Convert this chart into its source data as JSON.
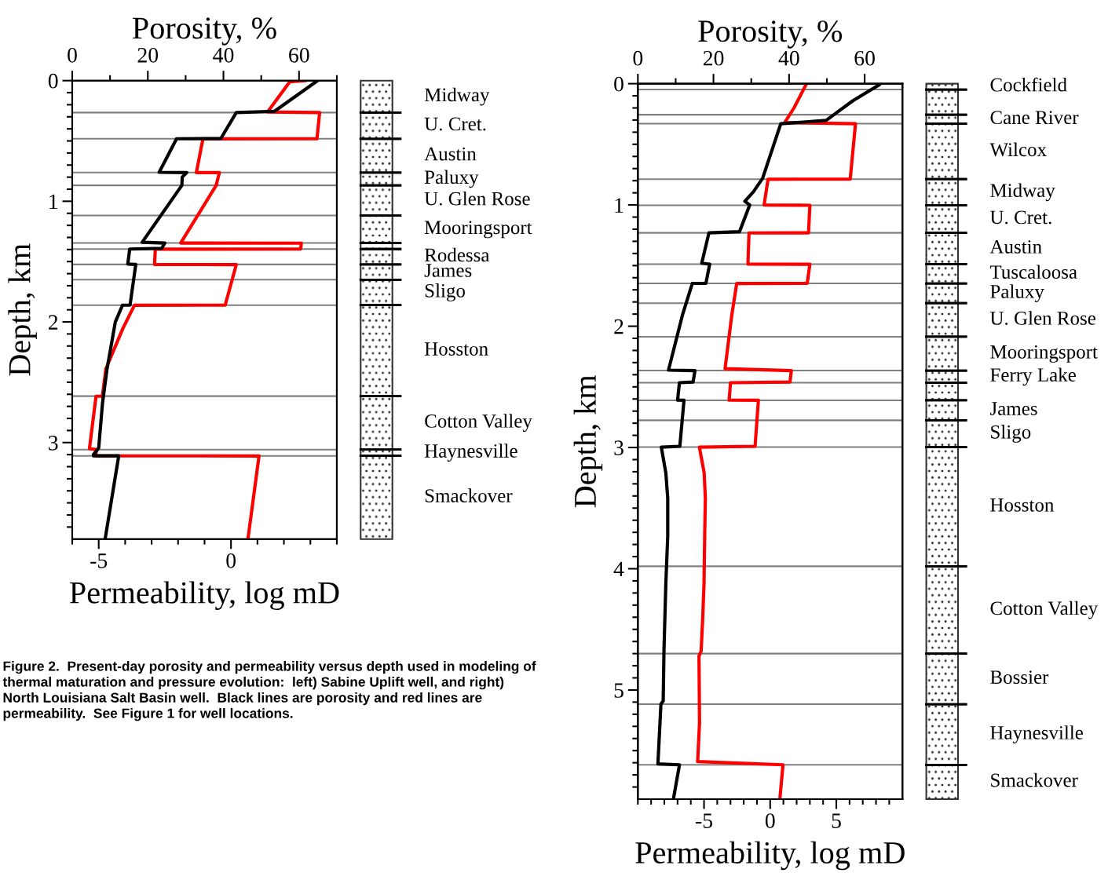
{
  "chart_data": [
    {
      "type": "line",
      "orientation": "horizontal",
      "xlabel": "Permeability, log mD",
      "x2label": "Porosity, %",
      "ylabel": "Depth, km",
      "xlim": [
        -6,
        4
      ],
      "xticks": [
        {
          "value": -6,
          "label": null
        },
        -5,
        {
          "value": -4,
          "label": null
        },
        {
          "value": -3,
          "label": null
        },
        {
          "value": -2,
          "label": null
        },
        {
          "value": -1,
          "label": null
        },
        0,
        {
          "value": 1,
          "label": null
        },
        {
          "value": 2,
          "label": null
        },
        {
          "value": 3,
          "label": null
        },
        {
          "value": 4,
          "label": null
        }
      ],
      "x2lim": [
        0,
        70
      ],
      "x2ticks": [
        0,
        {
          "value": 10,
          "label": null
        },
        20,
        {
          "value": 30,
          "label": null
        },
        40,
        {
          "value": 50,
          "label": null
        },
        60,
        {
          "value": 70,
          "label": null
        }
      ],
      "ylim": [
        3.8,
        0
      ],
      "yticks": [
        0,
        {
          "value": 0.1,
          "label": null
        },
        {
          "value": 0.2,
          "label": null
        },
        {
          "value": 0.3,
          "label": null
        },
        {
          "value": 0.4,
          "label": null
        },
        {
          "value": 0.5,
          "label": null
        },
        {
          "value": 0.6,
          "label": null
        },
        {
          "value": 0.7,
          "label": null
        },
        {
          "value": 0.8,
          "label": null
        },
        {
          "value": 0.9,
          "label": null
        },
        1,
        {
          "value": 1.1,
          "label": null
        },
        {
          "value": 1.2,
          "label": null
        },
        {
          "value": 1.3,
          "label": null
        },
        {
          "value": 1.4,
          "label": null
        },
        {
          "value": 1.5,
          "label": null
        },
        {
          "value": 1.6,
          "label": null
        },
        {
          "value": 1.7,
          "label": null
        },
        {
          "value": 1.8,
          "label": null
        },
        {
          "value": 1.9,
          "label": null
        },
        2,
        {
          "value": 2.1,
          "label": null
        },
        {
          "value": 2.2,
          "label": null
        },
        {
          "value": 2.3,
          "label": null
        },
        {
          "value": 2.4,
          "label": null
        },
        {
          "value": 2.5,
          "label": null
        },
        {
          "value": 2.6,
          "label": null
        },
        {
          "value": 2.7,
          "label": null
        },
        {
          "value": 2.8,
          "label": null
        },
        {
          "value": 2.9,
          "label": null
        },
        3,
        {
          "value": 3.1,
          "label": null
        },
        {
          "value": 3.2,
          "label": null
        },
        {
          "value": 3.3,
          "label": null
        },
        {
          "value": 3.4,
          "label": null
        },
        {
          "value": 3.5,
          "label": null
        },
        {
          "value": 3.6,
          "label": null
        },
        {
          "value": 3.7,
          "label": null
        }
      ],
      "series": [
        {
          "color": "#000000",
          "axis": "x2",
          "x": [
            0.0,
            0.254,
            0.265,
            0.48,
            0.482,
            0.76,
            0.762,
            0.8,
            0.868,
            1.34,
            1.346,
            1.39,
            1.396,
            1.52,
            1.524,
            1.86,
            1.861,
            2.0,
            2.39,
            2.675,
            3.044,
            3.058,
            3.1,
            3.11,
            3.11,
            3.8
          ],
          "values": [
            64.9,
            53.5,
            43.4,
            39.3,
            27.6,
            23.0,
            30.3,
            29.1,
            29.0,
            18.5,
            24.5,
            23.7,
            15.2,
            14.7,
            16.8,
            15.3,
            13.3,
            11.4,
            9.2,
            8.0,
            7.0,
            6.7,
            5.6,
            5.6,
            12.3,
            8.7
          ]
        },
        {
          "color": "#ff0000",
          "x": [
            0.0,
            0.01,
            0.26,
            0.265,
            0.482,
            0.483,
            0.762,
            0.763,
            0.868,
            1.346,
            1.347,
            1.396,
            1.397,
            1.524,
            1.525,
            1.861,
            1.862,
            2.056,
            2.39,
            2.615,
            2.616,
            3.05,
            3.058,
            3.11,
            3.111,
            3.8
          ],
          "values": [
            2.81,
            2.22,
            1.38,
            3.35,
            3.25,
            -1.06,
            -1.31,
            -0.44,
            -0.56,
            -1.9,
            2.66,
            2.63,
            -2.86,
            -2.89,
            0.2,
            -0.22,
            -3.65,
            -4.09,
            -4.73,
            -4.86,
            -5.1,
            -5.35,
            -5.1,
            -5.1,
            1.06,
            0.64
          ]
        }
      ],
      "ref_lines": [
        {
          "axis": "y",
          "value": 0.265
        },
        {
          "axis": "y",
          "value": 0.482
        },
        {
          "axis": "y",
          "value": 0.762
        },
        {
          "axis": "y",
          "value": 0.868
        },
        {
          "axis": "y",
          "value": 1.118
        },
        {
          "axis": "y",
          "value": 1.346
        },
        {
          "axis": "y",
          "value": 1.396
        },
        {
          "axis": "y",
          "value": 1.524
        },
        {
          "axis": "y",
          "value": 1.65
        },
        {
          "axis": "y",
          "value": 1.861
        },
        {
          "axis": "y",
          "value": 2.615
        },
        {
          "axis": "y",
          "value": 3.058
        },
        {
          "axis": "y",
          "value": 3.11
        }
      ],
      "annotations": [
        "Midway",
        "U. Cret.",
        "Austin",
        "Paluxy",
        "U. Glen Rose",
        "Mooringsport",
        null,
        "Rodessa",
        "James",
        "Sligo",
        "Hosston",
        "Cotton Valley",
        "Haynesville",
        "Smackover",
        "Figure 2.  Present-day porosity and permeability versus depth used in modeling of thermal maturation and pressure evolution:  left) Sabine Uplift well, and right) North Louisiana Salt Basin well.  Black lines are porosity and red lines are permeability.  See Figure 1 for well locations."
      ]
    },
    {
      "type": "line",
      "orientation": "horizontal",
      "xlabel": "Permeability, log mD",
      "x2label": "Porosity, %",
      "ylabel": "Depth, km",
      "xlim": [
        -10,
        10
      ],
      "xticks": [
        {
          "value": -10,
          "label": null
        },
        {
          "value": -9,
          "label": null
        },
        {
          "value": -8,
          "label": null
        },
        {
          "value": -7,
          "label": null
        },
        {
          "value": -6,
          "label": null
        },
        -5,
        {
          "value": -4,
          "label": null
        },
        {
          "value": -3,
          "label": null
        },
        {
          "value": -2,
          "label": null
        },
        {
          "value": -1,
          "label": null
        },
        0,
        {
          "value": 1,
          "label": null
        },
        {
          "value": 2,
          "label": null
        },
        {
          "value": 3,
          "label": null
        },
        {
          "value": 4,
          "label": null
        },
        5,
        {
          "value": 6,
          "label": null
        },
        {
          "value": 7,
          "label": null
        },
        {
          "value": 8,
          "label": null
        },
        {
          "value": 9,
          "label": null
        }
      ],
      "x2lim": [
        0,
        70
      ],
      "x2ticks": [
        0,
        {
          "value": 10,
          "label": null
        },
        20,
        {
          "value": 30,
          "label": null
        },
        40,
        {
          "value": 50,
          "label": null
        },
        60
      ],
      "ylim": [
        5.9,
        0
      ],
      "yticks": [
        0,
        {
          "value": 0.1,
          "label": null
        },
        {
          "value": 0.2,
          "label": null
        },
        {
          "value": 0.3,
          "label": null
        },
        {
          "value": 0.4,
          "label": null
        },
        {
          "value": 0.5,
          "label": null
        },
        {
          "value": 0.6,
          "label": null
        },
        {
          "value": 0.7,
          "label": null
        },
        {
          "value": 0.8,
          "label": null
        },
        {
          "value": 0.9,
          "label": null
        },
        1,
        {
          "value": 1.1,
          "label": null
        },
        {
          "value": 1.2,
          "label": null
        },
        {
          "value": 1.3,
          "label": null
        },
        {
          "value": 1.4,
          "label": null
        },
        {
          "value": 1.5,
          "label": null
        },
        {
          "value": 1.6,
          "label": null
        },
        {
          "value": 1.7,
          "label": null
        },
        {
          "value": 1.8,
          "label": null
        },
        {
          "value": 1.9,
          "label": null
        },
        2,
        {
          "value": 2.1,
          "label": null
        },
        {
          "value": 2.2,
          "label": null
        },
        {
          "value": 2.3,
          "label": null
        },
        {
          "value": 2.4,
          "label": null
        },
        {
          "value": 2.5,
          "label": null
        },
        {
          "value": 2.6,
          "label": null
        },
        {
          "value": 2.7,
          "label": null
        },
        {
          "value": 2.8,
          "label": null
        },
        {
          "value": 2.9,
          "label": null
        },
        3,
        {
          "value": 3.1,
          "label": null
        },
        {
          "value": 3.2,
          "label": null
        },
        {
          "value": 3.3,
          "label": null
        },
        {
          "value": 3.4,
          "label": null
        },
        {
          "value": 3.5,
          "label": null
        },
        {
          "value": 3.6,
          "label": null
        },
        {
          "value": 3.7,
          "label": null
        },
        {
          "value": 3.8,
          "label": null
        },
        {
          "value": 3.9,
          "label": null
        },
        4,
        {
          "value": 4.1,
          "label": null
        },
        {
          "value": 4.2,
          "label": null
        },
        {
          "value": 4.3,
          "label": null
        },
        {
          "value": 4.4,
          "label": null
        },
        {
          "value": 4.5,
          "label": null
        },
        {
          "value": 4.6,
          "label": null
        },
        {
          "value": 4.7,
          "label": null
        },
        {
          "value": 4.8,
          "label": null
        },
        {
          "value": 4.9,
          "label": null
        },
        5,
        {
          "value": 5.1,
          "label": null
        },
        {
          "value": 5.2,
          "label": null
        },
        {
          "value": 5.3,
          "label": null
        },
        {
          "value": 5.4,
          "label": null
        },
        {
          "value": 5.5,
          "label": null
        },
        {
          "value": 5.6,
          "label": null
        },
        {
          "value": 5.7,
          "label": null
        },
        {
          "value": 5.8,
          "label": null
        }
      ],
      "series": [
        {
          "color": "#000000",
          "axis": "x2",
          "x": [
            0.01,
            0.14,
            0.303,
            0.33,
            0.78,
            0.89,
            0.97,
            1.0,
            1.22,
            1.23,
            1.48,
            1.488,
            1.646,
            1.647,
            1.907,
            2.362,
            2.366,
            2.46,
            2.466,
            2.61,
            2.611,
            2.99,
            2.997,
            3.21,
            3.42,
            3.73,
            4.12,
            4.68,
            5.09,
            5.117,
            5.61,
            5.617,
            5.9
          ],
          "values": [
            63.8,
            56.9,
            49.8,
            37.8,
            33.0,
            30.6,
            28.3,
            29.6,
            26.9,
            18.8,
            16.9,
            19.0,
            18.0,
            14.4,
            11.8,
            8.1,
            15.1,
            14.6,
            11.0,
            10.5,
            12.2,
            11.1,
            6.2,
            7.4,
            7.9,
            7.9,
            7.4,
            6.9,
            6.7,
            6.1,
            5.3,
            11.0,
            9.4
          ]
        },
        {
          "color": "#ff0000",
          "x": [
            0.01,
            0.2,
            0.32,
            0.33,
            0.787,
            0.788,
            1.0,
            1.003,
            1.23,
            1.231,
            1.488,
            1.489,
            1.647,
            1.648,
            1.907,
            2.35,
            2.366,
            2.46,
            2.466,
            2.61,
            2.611,
            2.99,
            2.997,
            3.21,
            3.42,
            3.73,
            4.12,
            4.41,
            4.68,
            4.72,
            5.27,
            5.59,
            5.617,
            5.9
          ],
          "values": [
            2.7,
            1.8,
            1.1,
            6.45,
            6.05,
            -0.16,
            -0.46,
            3.0,
            2.9,
            -1.6,
            -1.68,
            3.0,
            2.8,
            -2.53,
            -2.9,
            -3.41,
            1.6,
            1.5,
            -3.0,
            -3.1,
            -0.89,
            -1.14,
            -5.35,
            -4.99,
            -4.9,
            -4.95,
            -5.0,
            -5.1,
            -5.22,
            -5.38,
            -5.34,
            -5.48,
            0.97,
            0.73
          ]
        }
      ],
      "ref_lines": [
        {
          "axis": "y",
          "value": 0.048
        },
        {
          "axis": "y",
          "value": 0.256
        },
        {
          "axis": "y",
          "value": 0.33
        },
        {
          "axis": "y",
          "value": 0.787
        },
        {
          "axis": "y",
          "value": 1.003
        },
        {
          "axis": "y",
          "value": 1.23
        },
        {
          "axis": "y",
          "value": 1.488
        },
        {
          "axis": "y",
          "value": 1.647
        },
        {
          "axis": "y",
          "value": 1.81
        },
        {
          "axis": "y",
          "value": 2.087
        },
        {
          "axis": "y",
          "value": 2.366
        },
        {
          "axis": "y",
          "value": 2.466
        },
        {
          "axis": "y",
          "value": 2.611
        },
        {
          "axis": "y",
          "value": 2.776
        },
        {
          "axis": "y",
          "value": 2.997
        },
        {
          "axis": "y",
          "value": 3.98
        },
        {
          "axis": "y",
          "value": 4.7
        },
        {
          "axis": "y",
          "value": 5.117
        },
        {
          "axis": "y",
          "value": 5.617
        }
      ],
      "annotations": [
        "Cockfield",
        null,
        "Cane River",
        "Wilcox",
        "Midway",
        "U. Cret.",
        "Austin",
        "Tuscaloosa",
        "Paluxy",
        "U. Glen Rose",
        "Mooringsport",
        "Ferry Lake",
        null,
        "James",
        "Sligo",
        "Hosston",
        "Cotton Valley",
        "Bossier",
        "Haynesville",
        "Smackover"
      ]
    }
  ]
}
